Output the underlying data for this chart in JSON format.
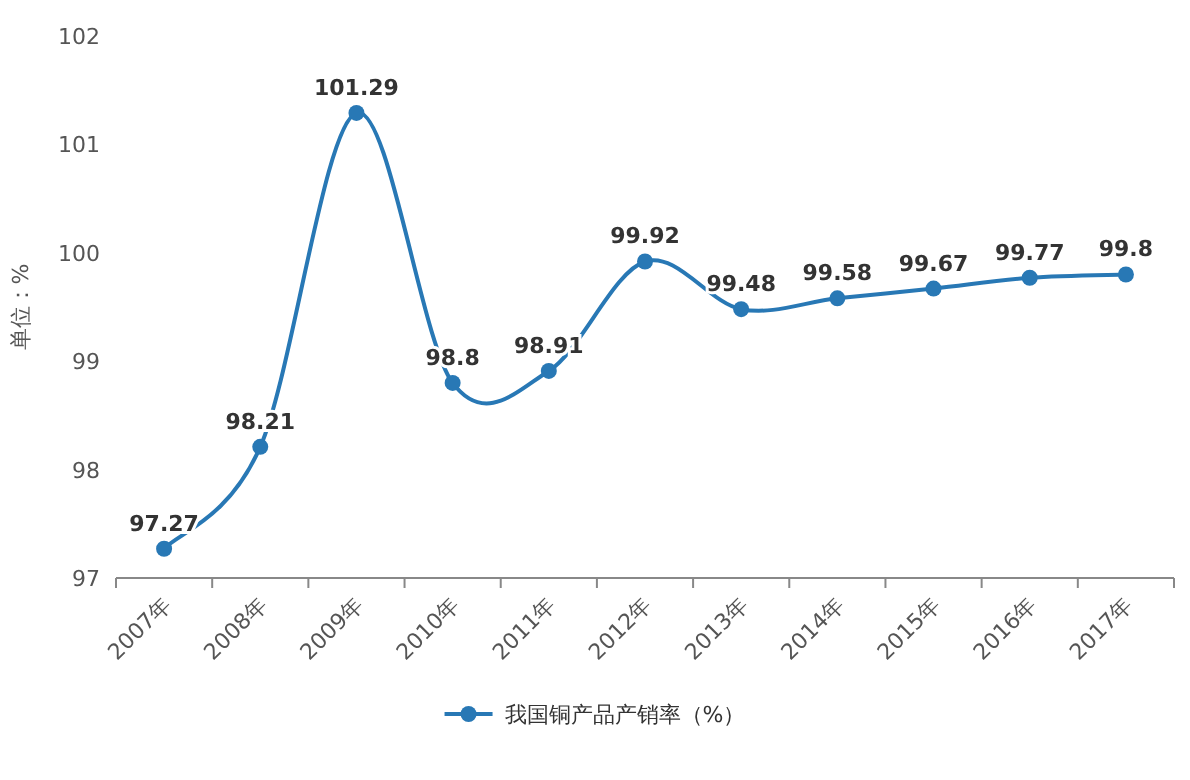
{
  "chart_data": {
    "type": "line",
    "ylabel": "单位：%",
    "categories": [
      "2007年",
      "2008年",
      "2009年",
      "2010年",
      "2011年",
      "2012年",
      "2013年",
      "2014年",
      "2015年",
      "2016年",
      "2017年"
    ],
    "series": [
      {
        "name": "我国铜产品产销率（%）",
        "color": "#2878b5",
        "values": [
          97.27,
          98.21,
          101.29,
          98.8,
          98.91,
          99.92,
          99.48,
          99.58,
          99.67,
          99.77,
          99.8
        ]
      }
    ],
    "ylim": [
      97,
      102
    ],
    "yticks": [
      97,
      98,
      99,
      100,
      101,
      102
    ],
    "data_labels": true,
    "legend": "bottom",
    "marker": "circle"
  }
}
